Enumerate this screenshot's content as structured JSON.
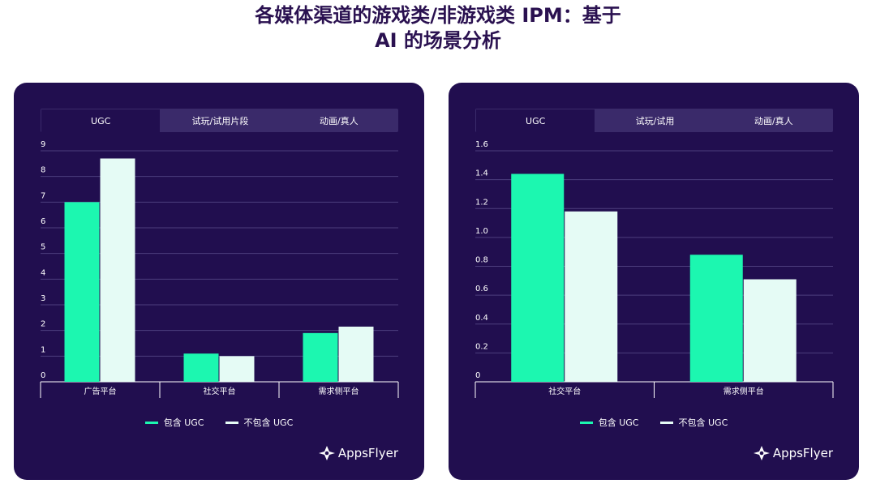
{
  "page": {
    "title_line1": "各媒体渠道的游戏类/非游戏类 IPM：基于",
    "title_line2": "AI 的场景分析"
  },
  "panels": [
    {
      "tabs": [
        "UGC",
        "试玩/试用片段",
        "动画/真人"
      ],
      "active_tab": 0,
      "legend": [
        "包含 UGC",
        "不包含 UGC"
      ],
      "logo_text": "AppsFlyer"
    },
    {
      "tabs": [
        "UGC",
        "试玩/试用",
        "动画/真人"
      ],
      "active_tab": 0,
      "legend": [
        "包含 UGC",
        "不包含 UGC"
      ],
      "logo_text": "AppsFlyer"
    }
  ],
  "colors": {
    "include": "#1cf7b0",
    "exclude": "#e5fbf5",
    "grid": "#4d3e7e",
    "axis": "#ffffff"
  },
  "chart_data": [
    {
      "type": "bar",
      "categories": [
        "广告平台",
        "社交平台",
        "需求侧平台"
      ],
      "series": [
        {
          "name": "包含 UGC",
          "values": [
            7.0,
            1.1,
            1.9
          ]
        },
        {
          "name": "不包含 UGC",
          "values": [
            8.7,
            1.0,
            2.15
          ]
        }
      ],
      "ylim": [
        0,
        9
      ],
      "yticks": [
        "0",
        "1",
        "2",
        "3",
        "4",
        "5",
        "6",
        "7",
        "8",
        "9"
      ],
      "grid": true,
      "legend_position": "bottom"
    },
    {
      "type": "bar",
      "categories": [
        "社交平台",
        "需求侧平台"
      ],
      "series": [
        {
          "name": "包含 UGC",
          "values": [
            1.44,
            0.88
          ]
        },
        {
          "name": "不包含 UGC",
          "values": [
            1.18,
            0.71
          ]
        }
      ],
      "ylim": [
        0,
        1.6
      ],
      "yticks": [
        "0",
        "0.2",
        "0.4",
        "0.6",
        "0.8",
        "1.0",
        "1.2",
        "1.4",
        "1.6"
      ],
      "grid": true,
      "legend_position": "bottom"
    }
  ]
}
